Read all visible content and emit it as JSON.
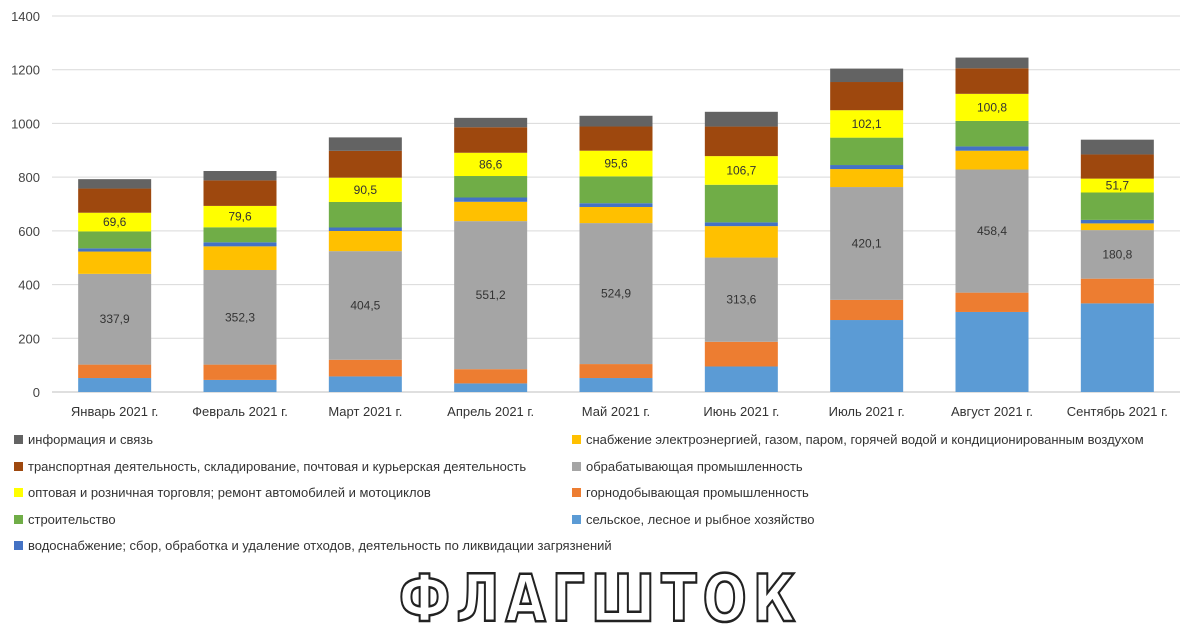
{
  "chart_data": {
    "type": "bar",
    "stacked": true,
    "title": "",
    "xlabel": "",
    "ylabel": "",
    "ylim": [
      0,
      1400
    ],
    "yticks": [
      0,
      200,
      400,
      600,
      800,
      1000,
      1200,
      1400
    ],
    "grid": true,
    "legend_position": "bottom",
    "categories": [
      "Январь 2021  г.",
      "Февраль 2021  г.",
      "Март 2021  г.",
      "Апрель 2021  г.",
      "Май 2021  г.",
      "Июнь 2021  г.",
      "Июль 2021  г.",
      "Август 2021  г.",
      "Сентябрь 2021  г."
    ],
    "series": [
      {
        "name": "сельское, лесное и рыбное хозяйство",
        "color": "#5B9BD5",
        "values": [
          52,
          45,
          58,
          32,
          52,
          95,
          268,
          298,
          330
        ]
      },
      {
        "name": "горнодобывающая промышленность",
        "color": "#ED7D31",
        "values": [
          50,
          57,
          62,
          53,
          52,
          92,
          75,
          72,
          92
        ]
      },
      {
        "name": "обрабатывающая промышленность",
        "color": "#A5A5A5",
        "values": [
          337.9,
          352.3,
          404.5,
          551.2,
          524.9,
          313.6,
          420.1,
          458.4,
          180.8
        ]
      },
      {
        "name": "снабжение электроэнергией, газом, паром, горячей водой и кондиционированным воздухом",
        "color": "#FFC000",
        "values": [
          83,
          88,
          75,
          72,
          60,
          117,
          67,
          70,
          25
        ]
      },
      {
        "name": "водоснабжение; сбор, обработка и удаление отходов, деятельность по ликвидации загрязнений",
        "color": "#4472C4",
        "values": [
          12,
          15,
          13,
          16,
          14,
          14,
          15,
          16,
          13
        ]
      },
      {
        "name": "строительство",
        "color": "#70AD47",
        "values": [
          63,
          56,
          95,
          80,
          100,
          140,
          102,
          95,
          102
        ]
      },
      {
        "name": "оптовая и розничная торговля; ремонт автомобилей и мотоциклов",
        "color": "#FFFF00",
        "values": [
          69.6,
          79.6,
          90.5,
          86.6,
          95.6,
          106.7,
          102.1,
          100.8,
          51.7
        ]
      },
      {
        "name": "транспортная деятельность, складирование, почтовая и курьерская деятельность",
        "color": "#9E480E",
        "values": [
          90,
          95,
          100,
          95,
          90,
          110,
          105,
          95,
          90
        ]
      },
      {
        "name": "информация и связь",
        "color": "#636363",
        "values": [
          35,
          35,
          50,
          35,
          40,
          55,
          50,
          40,
          55
        ]
      }
    ],
    "data_labels": {
      "обрабатывающая промышленность": [
        "337,9",
        "352,3",
        "404,5",
        "551,2",
        "524,9",
        "313,6",
        "420,1",
        "458,4",
        "180,8"
      ],
      "оптовая и розничная торговля; ремонт автомобилей и мотоциклов": [
        "69,6",
        "79,6",
        "90,5",
        "86,6",
        "95,6",
        "106,7",
        "102,1",
        "100,8",
        "51,7"
      ]
    }
  },
  "legend": [
    {
      "label": "информация и связь",
      "color": "#636363"
    },
    {
      "label": "снабжение электроэнергией, газом, паром, горячей водой и кондиционированным воздухом",
      "color": "#FFC000"
    },
    {
      "label": "транспортная деятельность, складирование, почтовая и курьерская деятельность",
      "color": "#9E480E"
    },
    {
      "label": "обрабатывающая промышленность",
      "color": "#A5A5A5"
    },
    {
      "label": "оптовая и розничная торговля; ремонт автомобилей и мотоциклов",
      "color": "#FFFF00"
    },
    {
      "label": "горнодобывающая промышленность",
      "color": "#ED7D31"
    },
    {
      "label": "строительство",
      "color": "#70AD47"
    },
    {
      "label": "сельское, лесное и рыбное хозяйство",
      "color": "#5B9BD5"
    },
    {
      "label": "водоснабжение; сбор, обработка и удаление отходов, деятельность по ликвидации загрязнений",
      "color": "#4472C4"
    }
  ],
  "watermark": "ФЛАГШТОК"
}
